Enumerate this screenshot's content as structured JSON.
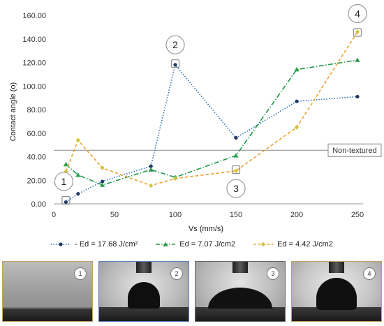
{
  "chart_data": {
    "type": "line",
    "xlabel": "Vs (mm/s)",
    "ylabel": "Contact angle (o)",
    "xlim": [
      0,
      250
    ],
    "ylim": [
      0,
      160
    ],
    "x_ticks": [
      "0",
      "50",
      "100",
      "150",
      "200",
      "250"
    ],
    "y_ticks": [
      "0.00",
      "20.00",
      "40.00",
      "60.00",
      "80.00",
      "100.00",
      "120.00",
      "140.00",
      "160.00"
    ],
    "grid": false,
    "legend_position": "bottom",
    "series": [
      {
        "name": "Ed = 17.68 J/cm²",
        "legend_label": "- Ed = 17.68 J/cm²",
        "color": "#2e75b6",
        "marker": "circle-dark",
        "linestyle": "dotted",
        "x": [
          10,
          20,
          40,
          80,
          100,
          150,
          200,
          250
        ],
        "y": [
          1.5,
          8.5,
          19,
          32,
          118,
          56,
          87,
          91
        ]
      },
      {
        "name": "Ed = 7.07 J/cm2",
        "legend_label": "Ed = 7.07 J/cm2",
        "color": "#1e9a4a",
        "marker": "triangle",
        "linestyle": "dashdot",
        "x": [
          10,
          20,
          40,
          80,
          100,
          150,
          200,
          250
        ],
        "y": [
          33.5,
          24.5,
          16,
          29,
          22.5,
          41,
          114,
          122
        ]
      },
      {
        "name": "Ed = 4.42 J/cm2",
        "legend_label": "Ed = 4.42 J/cm2",
        "color": "#f0a030",
        "marker": "diamond",
        "linestyle": "dashed",
        "x": [
          10,
          20,
          40,
          80,
          100,
          150,
          200,
          250
        ],
        "y": [
          27.5,
          54,
          30.5,
          15.5,
          21.5,
          28,
          65,
          146
        ]
      }
    ],
    "reference_line": {
      "label": "Non-textured",
      "y": 45.5,
      "color": "#888888"
    },
    "annotations": [
      {
        "label": "1",
        "x": 10,
        "y": 3,
        "circle_above": false
      },
      {
        "label": "2",
        "x": 100,
        "y": 119,
        "circle_above": true
      },
      {
        "label": "3",
        "x": 150,
        "y": 29,
        "circle_above": false
      },
      {
        "label": "4",
        "x": 250,
        "y": 145.5,
        "circle_above": true
      }
    ]
  },
  "photos": [
    {
      "label": "1",
      "border_color": "#c4a05f"
    },
    {
      "label": "2",
      "border_color": "#5d7fc1"
    },
    {
      "label": "3",
      "border_color": "#666666"
    },
    {
      "label": "4",
      "border_color": "#c4a05f"
    }
  ]
}
